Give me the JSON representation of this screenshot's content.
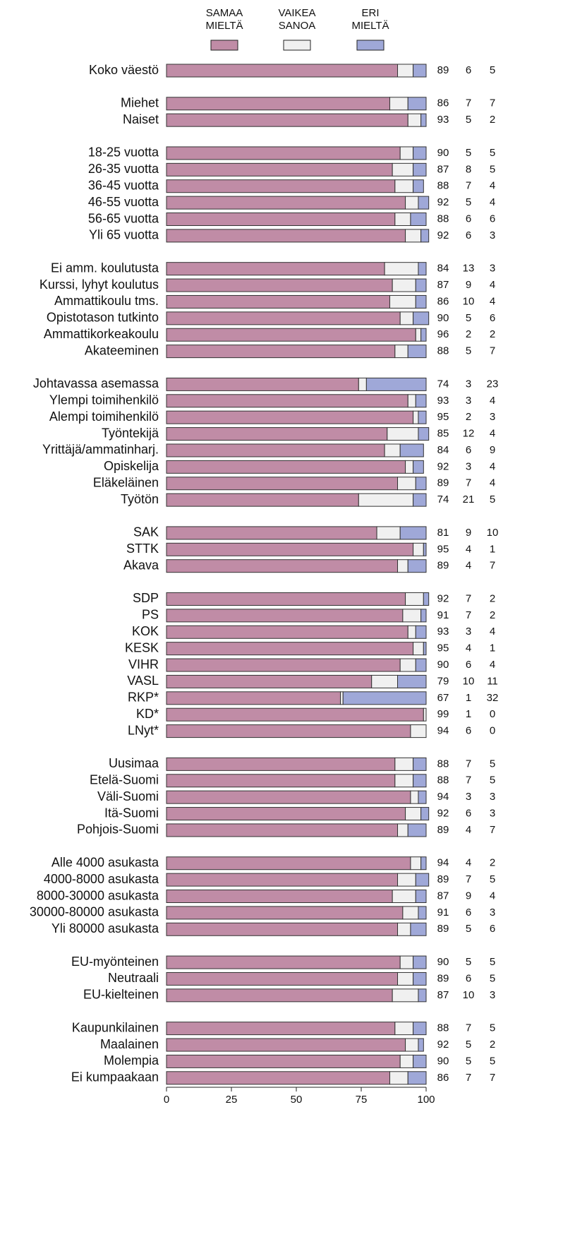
{
  "chart_data": {
    "type": "stacked_barh",
    "categories": [
      "Koko väestö",
      null,
      "Miehet",
      "Naiset",
      null,
      "18-25 vuotta",
      "26-35 vuotta",
      "36-45 vuotta",
      "46-55 vuotta",
      "56-65 vuotta",
      "Yli 65 vuotta",
      null,
      "Ei amm. koulutusta",
      "Kurssi, lyhyt koulutus",
      "Ammattikoulu tms.",
      "Opistotason tutkinto",
      "Ammattikorkeakoulu",
      "Akateeminen",
      null,
      "Johtavassa asemassa",
      "Ylempi toimihenkilö",
      "Alempi toimihenkilö",
      "Työntekijä",
      "Yrittäjä/ammatinharj.",
      "Opiskelija",
      "Eläkeläinen",
      "Työtön",
      null,
      "SAK",
      "STTK",
      "Akava",
      null,
      "SDP",
      "PS",
      "KOK",
      "KESK",
      "VIHR",
      "VASL",
      "RKP*",
      "KD*",
      "LNyt*",
      null,
      "Uusimaa",
      "Etelä-Suomi",
      "Väli-Suomi",
      "Itä-Suomi",
      "Pohjois-Suomi",
      null,
      "Alle 4000 asukasta",
      "4000-8000 asukasta",
      "8000-30000 asukasta",
      "30000-80000 asukasta",
      "Yli 80000 asukasta",
      null,
      "EU-myönteinen",
      "Neutraali",
      "EU-kielteinen",
      null,
      "Kaupunkilainen",
      "Maalainen",
      "Molempia",
      "Ei kumpaakaan"
    ],
    "series": [
      {
        "name": "SAMAA MIELTÄ",
        "color": "#c08ca6",
        "values": [
          89,
          null,
          86,
          93,
          null,
          90,
          87,
          88,
          92,
          88,
          92,
          null,
          84,
          87,
          86,
          90,
          96,
          88,
          null,
          74,
          93,
          95,
          85,
          84,
          92,
          89,
          74,
          null,
          81,
          95,
          89,
          null,
          92,
          91,
          93,
          95,
          90,
          79,
          67,
          99,
          94,
          null,
          88,
          88,
          94,
          92,
          89,
          null,
          94,
          89,
          87,
          91,
          89,
          null,
          90,
          89,
          87,
          null,
          88,
          92,
          90,
          86
        ]
      },
      {
        "name": "VAIKEA SANOA",
        "color": "#f0f0f0",
        "values": [
          6,
          null,
          7,
          5,
          null,
          5,
          8,
          7,
          5,
          6,
          6,
          null,
          13,
          9,
          10,
          5,
          2,
          5,
          null,
          3,
          3,
          2,
          12,
          6,
          3,
          7,
          21,
          null,
          9,
          4,
          4,
          null,
          7,
          7,
          3,
          4,
          6,
          10,
          1,
          1,
          6,
          null,
          7,
          7,
          3,
          6,
          4,
          null,
          4,
          7,
          9,
          6,
          5,
          null,
          5,
          6,
          10,
          null,
          7,
          5,
          5,
          7
        ]
      },
      {
        "name": "ERI MIELTÄ",
        "color": "#9fa8d8",
        "values": [
          5,
          null,
          7,
          2,
          null,
          5,
          5,
          4,
          4,
          6,
          3,
          null,
          3,
          4,
          4,
          6,
          2,
          7,
          null,
          23,
          4,
          3,
          4,
          9,
          4,
          4,
          5,
          null,
          10,
          1,
          7,
          null,
          2,
          2,
          4,
          1,
          4,
          11,
          32,
          0,
          0,
          null,
          5,
          5,
          3,
          3,
          7,
          null,
          2,
          5,
          4,
          3,
          6,
          null,
          5,
          5,
          3,
          null,
          5,
          2,
          5,
          7
        ]
      }
    ],
    "xlim": [
      0,
      100
    ],
    "xticks": [
      0,
      25,
      50,
      75,
      100
    ],
    "legend": "top"
  }
}
